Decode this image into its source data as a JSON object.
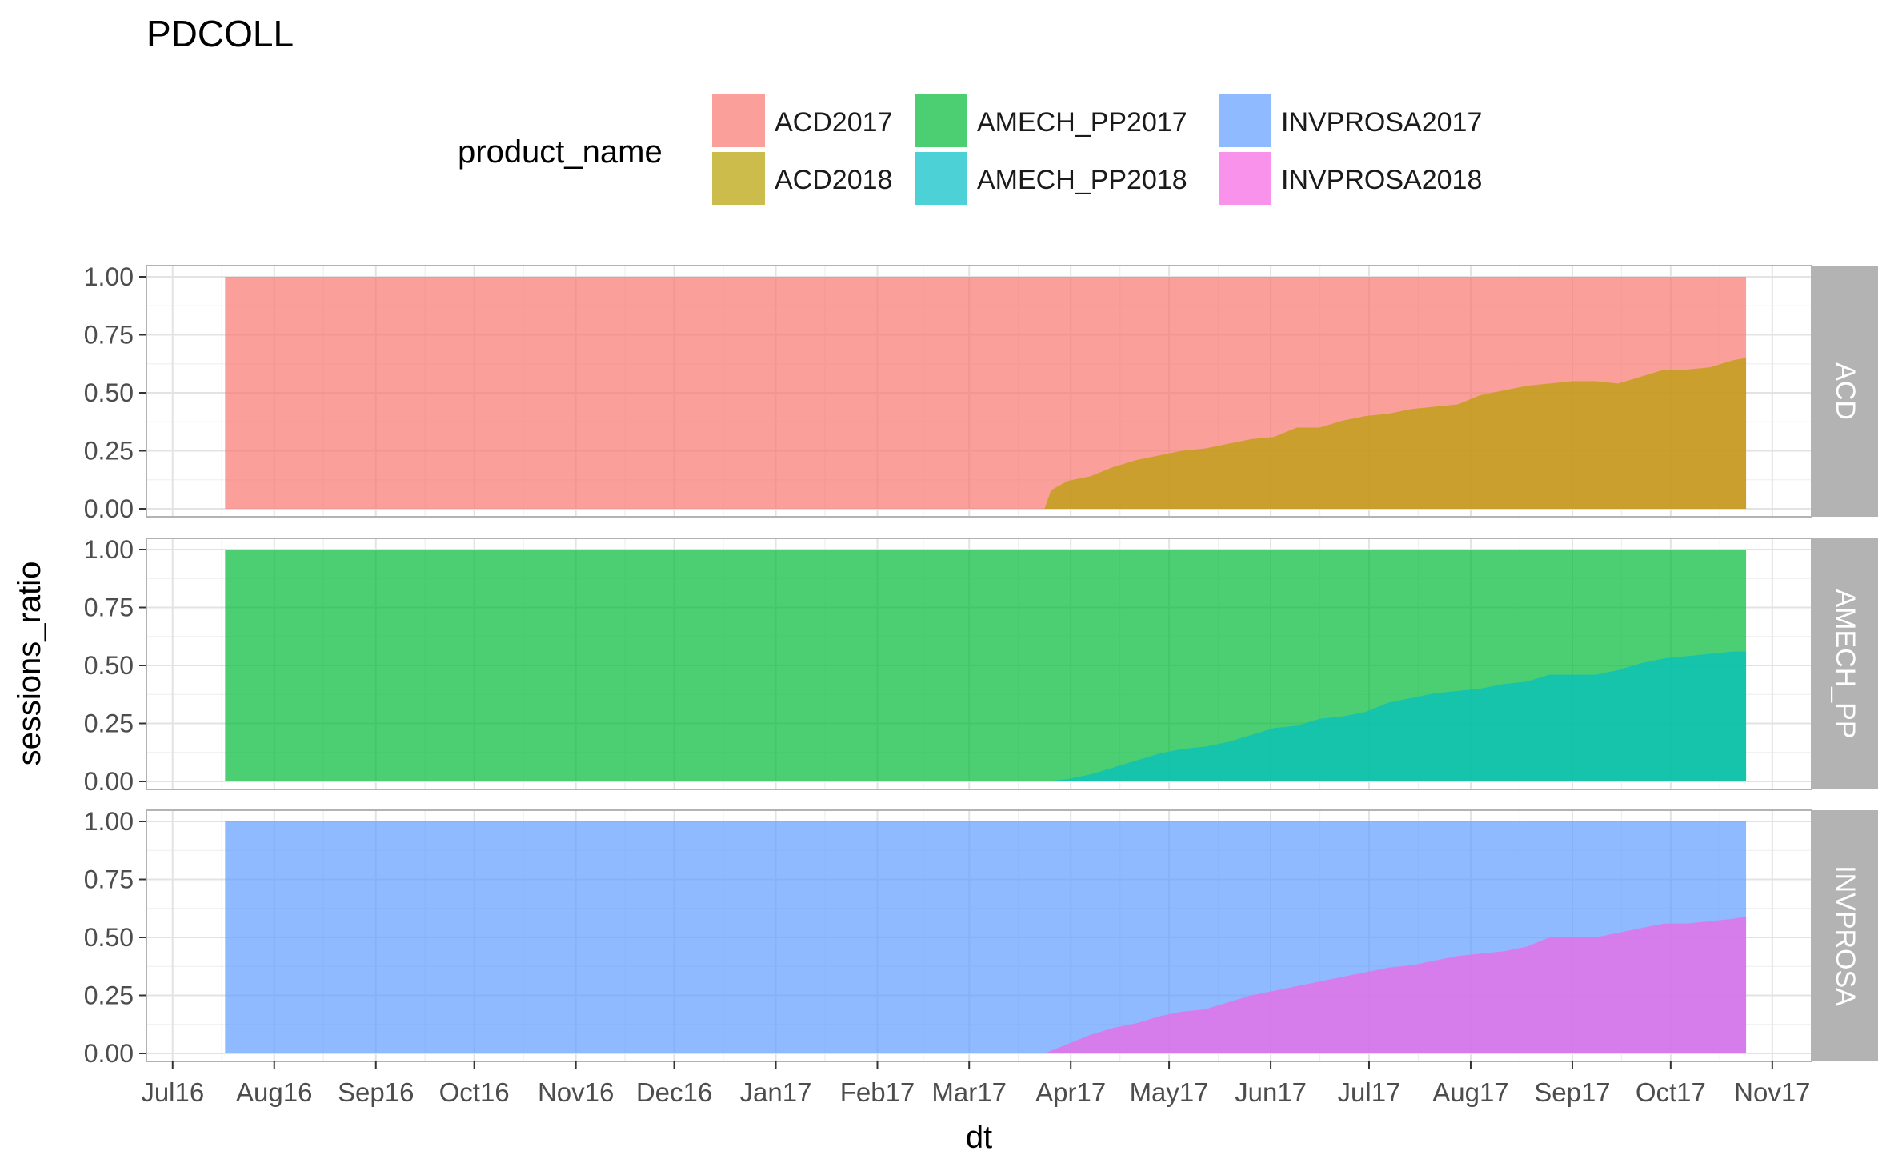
{
  "chart_data": {
    "type": "area",
    "title": "PDCOLL",
    "xlabel": "dt",
    "ylabel": "sessions_ratio",
    "legend": {
      "title": "product_name",
      "placement": "top",
      "entries": [
        {
          "name": "ACD2017",
          "color": "#F8766D"
        },
        {
          "name": "ACD2018",
          "color": "#B79F00"
        },
        {
          "name": "AMECH_PP2017",
          "color": "#00BA38"
        },
        {
          "name": "AMECH_PP2018",
          "color": "#00BFC4"
        },
        {
          "name": "INVPROSA2017",
          "color": "#619CFF"
        },
        {
          "name": "INVPROSA2018",
          "color": "#F564E3"
        }
      ]
    },
    "x_ticks": [
      "Jul16",
      "Aug16",
      "Sep16",
      "Oct16",
      "Nov16",
      "Dec16",
      "Jan17",
      "Feb17",
      "Mar17",
      "Apr17",
      "May17",
      "Jun17",
      "Jul17",
      "Aug17",
      "Sep17",
      "Oct17",
      "Nov17"
    ],
    "y_ticks": [
      "0.00",
      "0.25",
      "0.50",
      "0.75",
      "1.00"
    ],
    "ylim": [
      0,
      1
    ],
    "xlim": [
      "2016-06-23",
      "2017-11-13"
    ],
    "grid": true,
    "facets": [
      {
        "label": "ACD",
        "old_series": "ACD2017",
        "new_series": "ACD2018",
        "old_start": "2016-07-17",
        "new_x": [
          "2017-03-24",
          "2017-03-26",
          "2017-03-31",
          "2017-04-07",
          "2017-04-14",
          "2017-04-21",
          "2017-04-28",
          "2017-05-05",
          "2017-05-12",
          "2017-05-19",
          "2017-05-26",
          "2017-06-02",
          "2017-06-09",
          "2017-06-16",
          "2017-06-23",
          "2017-06-30",
          "2017-07-07",
          "2017-07-14",
          "2017-07-21",
          "2017-07-28",
          "2017-08-04",
          "2017-08-11",
          "2017-08-18",
          "2017-08-25",
          "2017-09-01",
          "2017-09-08",
          "2017-09-15",
          "2017-09-22",
          "2017-09-29",
          "2017-10-06",
          "2017-10-13",
          "2017-10-20",
          "2017-10-24"
        ],
        "new_values": [
          0.0,
          0.08,
          0.12,
          0.14,
          0.18,
          0.21,
          0.23,
          0.25,
          0.26,
          0.28,
          0.3,
          0.31,
          0.35,
          0.35,
          0.38,
          0.4,
          0.41,
          0.43,
          0.44,
          0.45,
          0.49,
          0.51,
          0.53,
          0.54,
          0.55,
          0.55,
          0.54,
          0.57,
          0.6,
          0.6,
          0.61,
          0.64,
          0.65
        ]
      },
      {
        "label": "AMECH_PP",
        "old_series": "AMECH_PP2017",
        "new_series": "AMECH_PP2018",
        "old_start": "2016-07-17",
        "new_x": [
          "2017-03-24",
          "2017-03-31",
          "2017-04-07",
          "2017-04-14",
          "2017-04-21",
          "2017-04-28",
          "2017-05-05",
          "2017-05-12",
          "2017-05-19",
          "2017-05-26",
          "2017-06-02",
          "2017-06-09",
          "2017-06-16",
          "2017-06-23",
          "2017-06-30",
          "2017-07-07",
          "2017-07-14",
          "2017-07-21",
          "2017-07-28",
          "2017-08-04",
          "2017-08-11",
          "2017-08-18",
          "2017-08-25",
          "2017-09-01",
          "2017-09-08",
          "2017-09-15",
          "2017-09-22",
          "2017-09-29",
          "2017-10-06",
          "2017-10-13",
          "2017-10-20",
          "2017-10-24"
        ],
        "new_values": [
          0.0,
          0.01,
          0.03,
          0.06,
          0.09,
          0.12,
          0.14,
          0.15,
          0.17,
          0.2,
          0.23,
          0.24,
          0.27,
          0.28,
          0.3,
          0.34,
          0.36,
          0.38,
          0.39,
          0.4,
          0.42,
          0.43,
          0.46,
          0.46,
          0.46,
          0.48,
          0.51,
          0.53,
          0.54,
          0.55,
          0.56,
          0.56
        ]
      },
      {
        "label": "INVPROSA",
        "old_series": "INVPROSA2017",
        "new_series": "INVPROSA2018",
        "old_start": "2016-07-17",
        "new_x": [
          "2017-03-24",
          "2017-03-31",
          "2017-04-07",
          "2017-04-14",
          "2017-04-21",
          "2017-04-28",
          "2017-05-05",
          "2017-05-12",
          "2017-05-19",
          "2017-05-26",
          "2017-06-02",
          "2017-06-09",
          "2017-06-16",
          "2017-06-23",
          "2017-06-30",
          "2017-07-07",
          "2017-07-14",
          "2017-07-21",
          "2017-07-28",
          "2017-08-04",
          "2017-08-11",
          "2017-08-18",
          "2017-08-25",
          "2017-09-01",
          "2017-09-08",
          "2017-09-15",
          "2017-09-22",
          "2017-09-29",
          "2017-10-06",
          "2017-10-13",
          "2017-10-20",
          "2017-10-24"
        ],
        "new_values": [
          0.0,
          0.04,
          0.08,
          0.11,
          0.13,
          0.16,
          0.18,
          0.19,
          0.22,
          0.25,
          0.27,
          0.29,
          0.31,
          0.33,
          0.35,
          0.37,
          0.38,
          0.4,
          0.42,
          0.43,
          0.44,
          0.46,
          0.5,
          0.5,
          0.5,
          0.52,
          0.54,
          0.56,
          0.56,
          0.57,
          0.58,
          0.59
        ]
      }
    ]
  }
}
